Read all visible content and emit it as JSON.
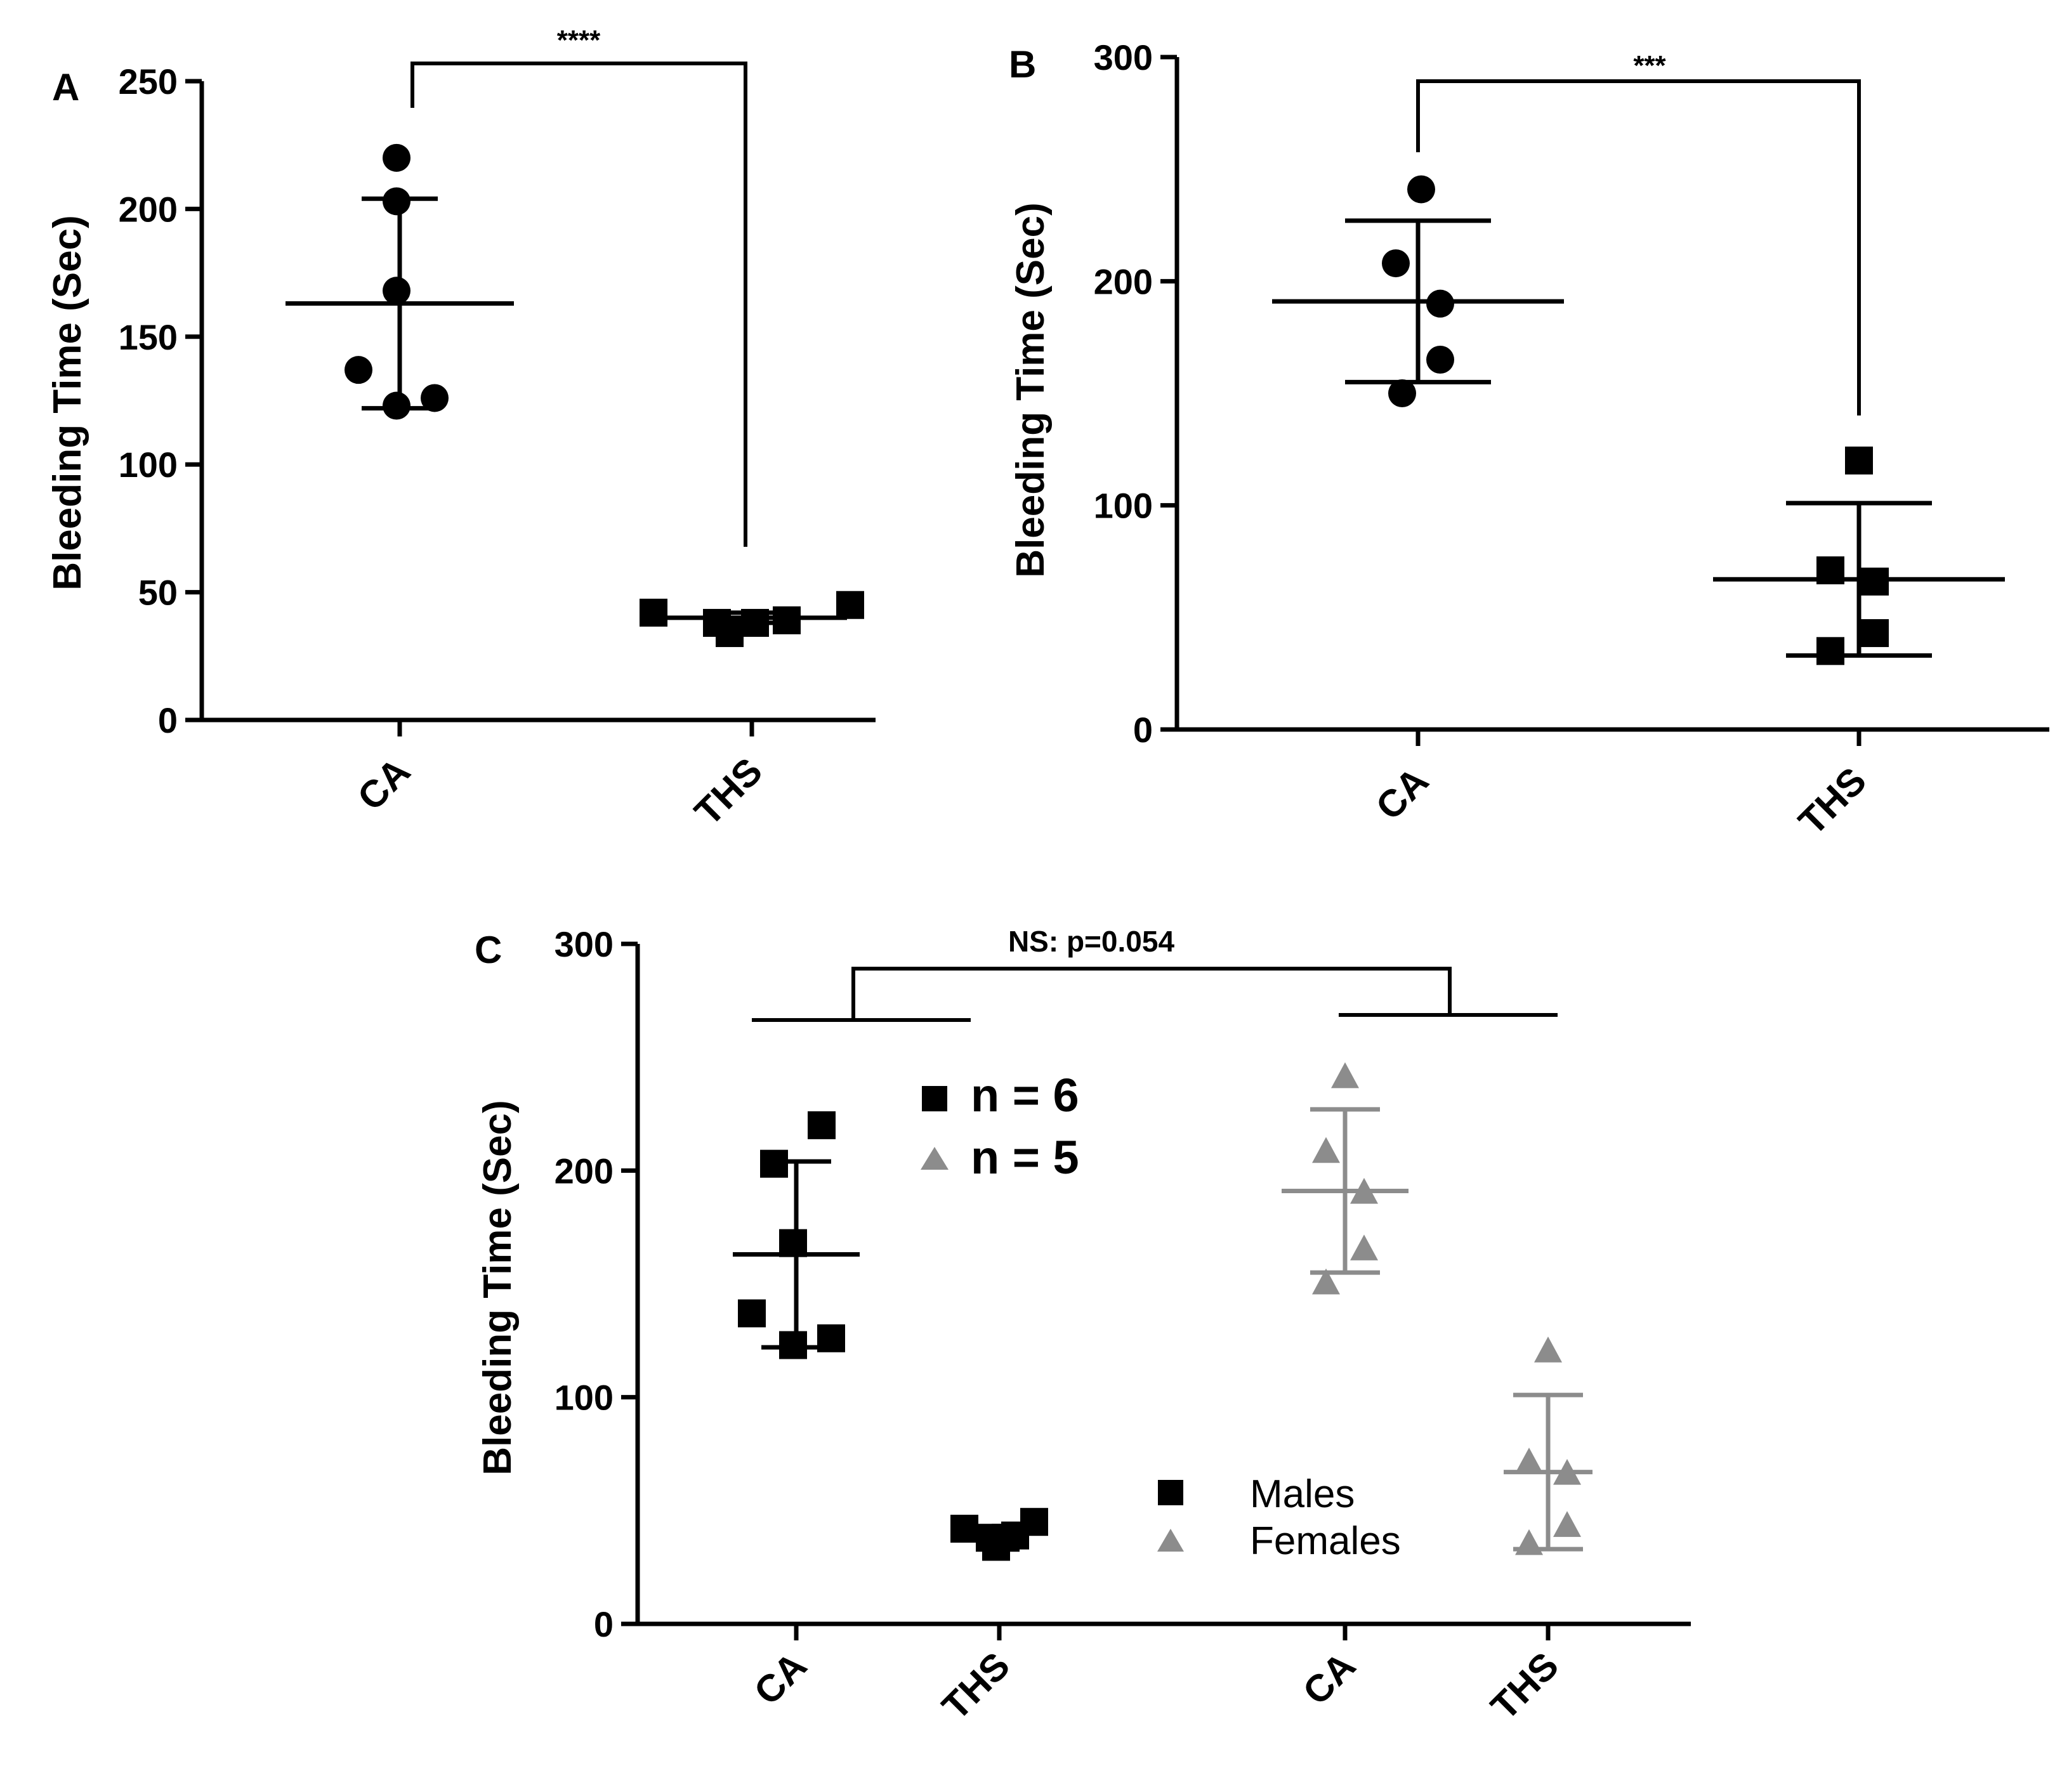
{
  "colors": {
    "black": "#000000",
    "gray": "#8c8c8c"
  },
  "chart_data": [
    {
      "panel": "A",
      "type": "scatter",
      "ylabel": "Bleeding Time (Sec)",
      "ylim": [
        0,
        250
      ],
      "yticks": [
        0,
        50,
        100,
        150,
        200,
        250
      ],
      "categories": [
        "CA",
        "THS"
      ],
      "series": [
        {
          "name": "CA",
          "marker": "circle",
          "color": "black",
          "points": [
            220,
            203,
            168,
            137,
            123,
            126
          ],
          "mean": 163,
          "sd": [
            122,
            204
          ]
        },
        {
          "name": "THS",
          "marker": "square",
          "color": "black",
          "points": [
            42,
            38,
            34,
            38,
            39,
            45
          ],
          "mean": 40,
          "sd": [
            38,
            42
          ]
        }
      ],
      "significance": {
        "label": "****",
        "between": [
          "CA",
          "THS"
        ]
      }
    },
    {
      "panel": "B",
      "type": "scatter",
      "ylabel": "Bleeding Time (Sec)",
      "ylim": [
        0,
        300
      ],
      "yticks": [
        0,
        100,
        200,
        300
      ],
      "categories": [
        "CA",
        "THS"
      ],
      "series": [
        {
          "name": "CA",
          "marker": "circle",
          "color": "black",
          "points": [
            241,
            208,
            190,
            165,
            150
          ],
          "mean": 191,
          "sd": [
            155,
            227
          ]
        },
        {
          "name": "THS",
          "marker": "square",
          "color": "black",
          "points": [
            120,
            71,
            66,
            43,
            35
          ],
          "mean": 67,
          "sd": [
            33,
            101
          ]
        }
      ],
      "significance": {
        "label": "***",
        "between": [
          "CA",
          "THS"
        ]
      }
    },
    {
      "panel": "C",
      "type": "scatter",
      "ylabel": "Bleeding Time (Sec)",
      "ylim": [
        0,
        300
      ],
      "yticks": [
        0,
        100,
        200,
        300
      ],
      "categories": [
        "CA",
        "THS",
        "CA",
        "THS"
      ],
      "series": [
        {
          "name": "Males CA",
          "group": "Males",
          "marker": "square",
          "color": "black",
          "points": [
            220,
            203,
            168,
            137,
            123,
            126
          ],
          "mean": 163,
          "sd": [
            122,
            204
          ]
        },
        {
          "name": "Males THS",
          "group": "Males",
          "marker": "square",
          "color": "black",
          "points": [
            42,
            38,
            34,
            38,
            39,
            45
          ],
          "mean": 40,
          "sd": [
            38,
            42
          ]
        },
        {
          "name": "Females CA",
          "group": "Females",
          "marker": "triangle",
          "color": "gray",
          "points": [
            241,
            208,
            190,
            165,
            150
          ],
          "mean": 191,
          "sd": [
            155,
            227
          ]
        },
        {
          "name": "Females THS",
          "group": "Females",
          "marker": "triangle",
          "color": "gray",
          "points": [
            120,
            71,
            66,
            43,
            35
          ],
          "mean": 67,
          "sd": [
            33,
            101
          ]
        }
      ],
      "significance": {
        "label": "NS: p=0.054",
        "between": [
          "Males",
          "Females"
        ]
      },
      "counts": [
        {
          "marker": "square",
          "color": "black",
          "label": "n = 6"
        },
        {
          "marker": "triangle",
          "color": "gray",
          "label": "n = 5"
        }
      ],
      "legend": [
        {
          "marker": "square",
          "color": "black",
          "label": "Males"
        },
        {
          "marker": "triangle",
          "color": "gray",
          "label": "Females"
        }
      ]
    }
  ]
}
